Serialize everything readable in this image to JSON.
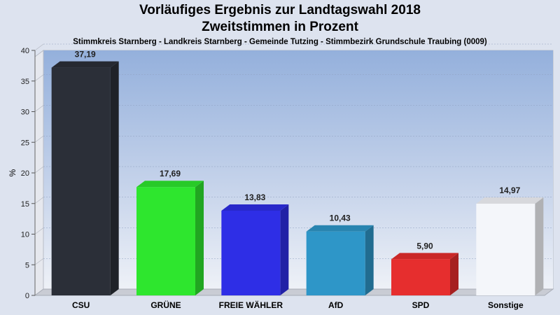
{
  "header": {
    "title": "Vorläufiges Ergebnis zur Landtagswahl 2018",
    "subtitle": "Zweitstimmen in Prozent",
    "location": "Stimmkreis Starnberg - Landkreis Starnberg - Gemeinde Tutzing - Stimmbezirk Grundschule Traubing (0009)"
  },
  "chart_data": {
    "type": "bar",
    "title": "Vorläufiges Ergebnis zur Landtagswahl 2018",
    "subtitle": "Zweitstimmen in Prozent",
    "ylabel": "%",
    "xlabel": "",
    "categories": [
      "CSU",
      "GRÜNE",
      "FREIE WÄHLER",
      "AfD",
      "SPD",
      "Sonstige"
    ],
    "values": [
      37.19,
      17.69,
      13.83,
      10.43,
      5.9,
      14.97
    ],
    "value_labels": [
      "37,19",
      "17,69",
      "13,83",
      "10,43",
      "5,90",
      "14,97"
    ],
    "colors": [
      "#2b2f38",
      "#2ee62e",
      "#2e2ee6",
      "#2e96c8",
      "#e62e2e",
      "#f4f6fa"
    ],
    "ylim": [
      0,
      40
    ],
    "yticks": [
      0,
      5,
      10,
      15,
      20,
      25,
      30,
      35,
      40
    ],
    "grid": true,
    "legend": "none"
  }
}
